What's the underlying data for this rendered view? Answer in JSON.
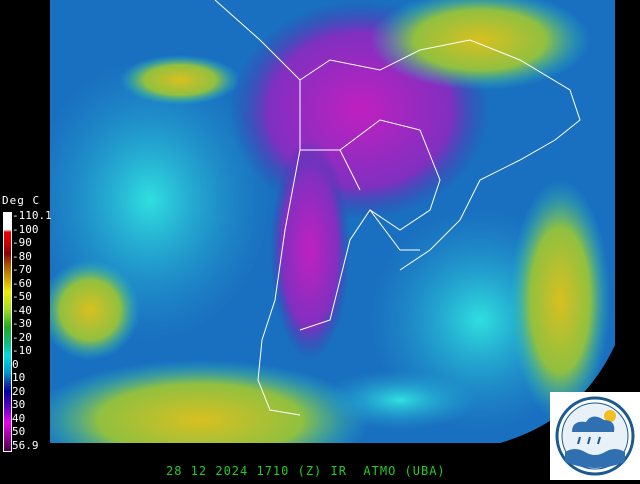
{
  "image": {
    "type": "infrared satellite image",
    "region": "South America (southern cone)"
  },
  "legend": {
    "title": "Deg C",
    "ticks": [
      "-110.1",
      "-100",
      "-90",
      "-80",
      "-70",
      "-60",
      "-50",
      "-40",
      "-30",
      "-20",
      "-10",
      "0",
      "10",
      "20",
      "30",
      "40",
      "50",
      "56.9"
    ]
  },
  "caption": "28 12 2024 1710 (Z) IR  ATMO (UBA)",
  "logo": {
    "name": "ATMO UBA weather logo"
  }
}
